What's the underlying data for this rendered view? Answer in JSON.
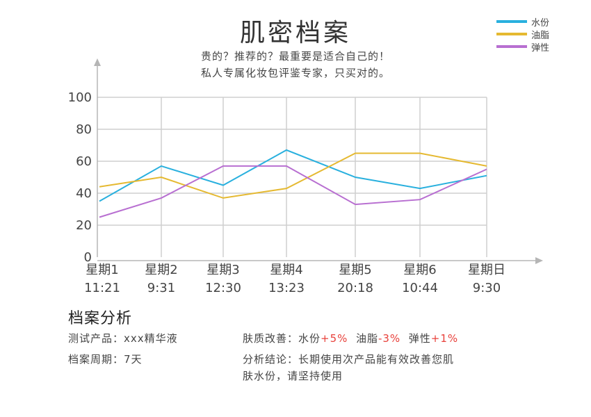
{
  "header": {
    "title": "肌密档案",
    "subtitle_line1": "贵的？推荐的？最重要是适合自己的！",
    "subtitle_line2": "私人专属化妆包评鉴专家，只买对的。"
  },
  "chart_data": {
    "type": "line",
    "categories": [
      {
        "day": "星期1",
        "time": "11:21"
      },
      {
        "day": "星期2",
        "time": "9:31"
      },
      {
        "day": "星期3",
        "time": "12:30"
      },
      {
        "day": "星期4",
        "time": "13:23"
      },
      {
        "day": "星期5",
        "time": "20:18"
      },
      {
        "day": "星期6",
        "time": "10:44"
      },
      {
        "day": "星期日",
        "time": "9:30"
      }
    ],
    "yticks": [
      "100",
      "80",
      "60",
      "40",
      "20",
      "0"
    ],
    "ylim": [
      0,
      100
    ],
    "grid": true,
    "legend_position": "top-right",
    "series": [
      {
        "name": "水份",
        "color": "#29b0de",
        "values": [
          35,
          57,
          45,
          67,
          50,
          43,
          51
        ]
      },
      {
        "name": "油脂",
        "color": "#e5b931",
        "values": [
          44,
          50,
          37,
          43,
          65,
          65,
          57
        ]
      },
      {
        "name": "弹性",
        "color": "#b86fd1",
        "values": [
          25,
          37,
          57,
          57,
          33,
          36,
          55
        ]
      }
    ]
  },
  "analysis": {
    "title": "档案分析",
    "product_label": "测试产品：",
    "product_value": "xxx精华液",
    "period_label": "档案周期：",
    "period_value": "7天",
    "improve_label": "肤质改善：",
    "improve_items": [
      {
        "name": "水份",
        "change": "+5%"
      },
      {
        "name": "油脂",
        "change": "-3%"
      },
      {
        "name": "弹性",
        "change": "+1%"
      }
    ],
    "conclusion_line1": "分析结论：长期使用次产品能有效改善您肌",
    "conclusion_line2": "肤水份，请坚持使用"
  }
}
